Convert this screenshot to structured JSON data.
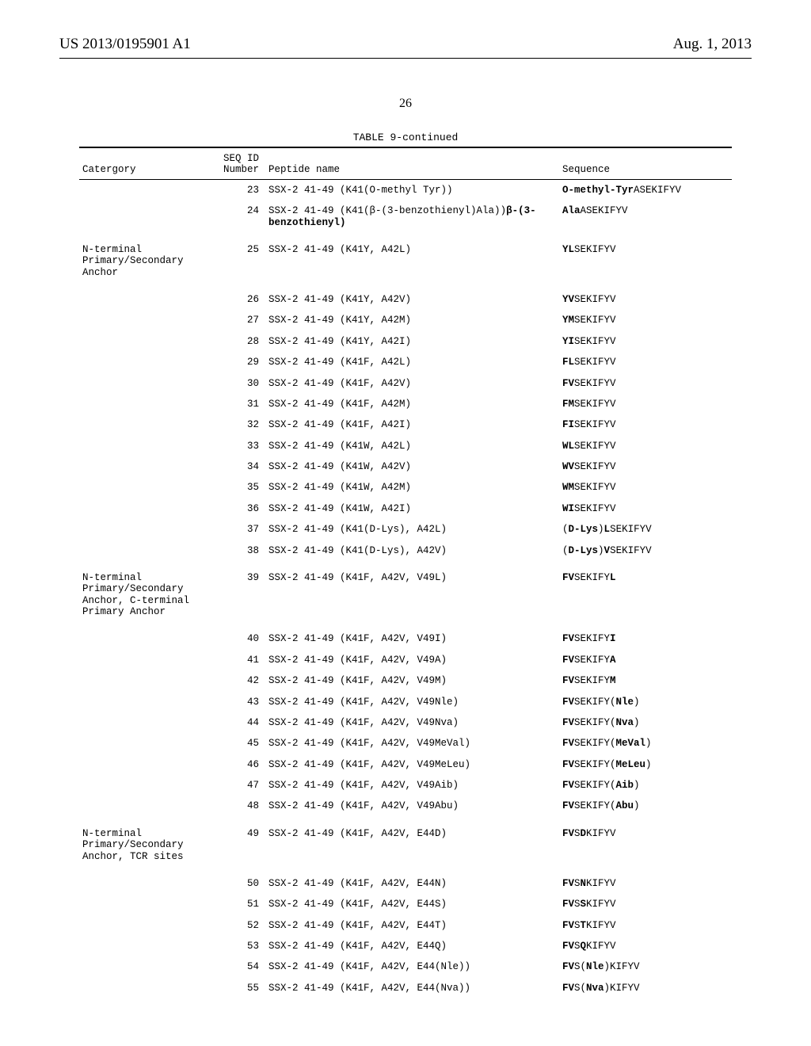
{
  "header": {
    "left": "US 2013/0195901 A1",
    "right": "Aug. 1, 2013"
  },
  "page_number": "26",
  "table": {
    "title": "TABLE 9-continued",
    "columns": {
      "category": "Catergory",
      "seqid_top": "SEQ ID",
      "seqid_bottom": "Number",
      "peptide": "Peptide name",
      "sequence": "Sequence"
    },
    "rows": [
      {
        "gap": false,
        "cat": "",
        "n": "23",
        "name_plain": "SSX-2 41-49 (K41(O-methyl Tyr))",
        "seq_html": "<b>O-methyl-Tyr</b>ASEKIFYV"
      },
      {
        "gap": false,
        "cat": "",
        "n": "24",
        "name_plain": "SSX-2 41-49 (K41(β-(3-benzothienyl)Ala))",
        "name_extra_html": "<b>β-(3-benzothienyl)</b>",
        "seq_html": "<b>Ala</b>ASEKIFYV"
      },
      {
        "gap": true,
        "cat": "N-terminal\nPrimary/Secondary\nAnchor",
        "n": "25",
        "name_plain": "SSX-2 41-49 (K41Y, A42L)",
        "seq_html": "<b>YL</b>SEKIFYV"
      },
      {
        "gap": true,
        "cat": "",
        "n": "26",
        "name_plain": "SSX-2 41-49 (K41Y, A42V)",
        "seq_html": "<b>YV</b>SEKIFYV"
      },
      {
        "gap": false,
        "cat": "",
        "n": "27",
        "name_plain": "SSX-2 41-49 (K41Y, A42M)",
        "seq_html": "<b>YM</b>SEKIFYV"
      },
      {
        "gap": false,
        "cat": "",
        "n": "28",
        "name_plain": "SSX-2 41-49 (K41Y, A42I)",
        "seq_html": "<b>YI</b>SEKIFYV"
      },
      {
        "gap": false,
        "cat": "",
        "n": "29",
        "name_plain": "SSX-2 41-49 (K41F, A42L)",
        "seq_html": "<b>FL</b>SEKIFYV"
      },
      {
        "gap": false,
        "cat": "",
        "n": "30",
        "name_plain": "SSX-2 41-49 (K41F, A42V)",
        "seq_html": "<b>FV</b>SEKIFYV"
      },
      {
        "gap": false,
        "cat": "",
        "n": "31",
        "name_plain": "SSX-2 41-49 (K41F, A42M)",
        "seq_html": "<b>FM</b>SEKIFYV"
      },
      {
        "gap": false,
        "cat": "",
        "n": "32",
        "name_plain": "SSX-2 41-49 (K41F, A42I)",
        "seq_html": "<b>FI</b>SEKIFYV"
      },
      {
        "gap": false,
        "cat": "",
        "n": "33",
        "name_plain": "SSX-2 41-49 (K41W, A42L)",
        "seq_html": "<b>WL</b>SEKIFYV"
      },
      {
        "gap": false,
        "cat": "",
        "n": "34",
        "name_plain": "SSX-2 41-49 (K41W, A42V)",
        "seq_html": "<b>WV</b>SEKIFYV"
      },
      {
        "gap": false,
        "cat": "",
        "n": "35",
        "name_plain": "SSX-2 41-49 (K41W, A42M)",
        "seq_html": "<b>WM</b>SEKIFYV"
      },
      {
        "gap": false,
        "cat": "",
        "n": "36",
        "name_plain": "SSX-2 41-49 (K41W, A42I)",
        "seq_html": "<b>WI</b>SEKIFYV"
      },
      {
        "gap": false,
        "cat": "",
        "n": "37",
        "name_plain": "SSX-2 41-49 (K41(D-Lys), A42L)",
        "seq_html": "(<b>D-Lys</b>)<b>L</b>SEKIFYV"
      },
      {
        "gap": false,
        "cat": "",
        "n": "38",
        "name_plain": "SSX-2 41-49 (K41(D-Lys), A42V)",
        "seq_html": "(<b>D-Lys</b>)<b>V</b>SEKIFYV"
      },
      {
        "gap": true,
        "cat": "N-terminal\nPrimary/Secondary\nAnchor, C-terminal\nPrimary Anchor",
        "n": "39",
        "name_plain": "SSX-2 41-49 (K41F, A42V, V49L)",
        "seq_html": "<b>FV</b>SEKIFY<b>L</b>"
      },
      {
        "gap": true,
        "cat": "",
        "n": "40",
        "name_plain": "SSX-2 41-49 (K41F, A42V, V49I)",
        "seq_html": "<b>FV</b>SEKIFY<b>I</b>"
      },
      {
        "gap": false,
        "cat": "",
        "n": "41",
        "name_plain": "SSX-2 41-49 (K41F, A42V, V49A)",
        "seq_html": "<b>FV</b>SEKIFY<b>A</b>"
      },
      {
        "gap": false,
        "cat": "",
        "n": "42",
        "name_plain": "SSX-2 41-49 (K41F, A42V, V49M)",
        "seq_html": "<b>FV</b>SEKIFY<b>M</b>"
      },
      {
        "gap": false,
        "cat": "",
        "n": "43",
        "name_plain": "SSX-2 41-49 (K41F, A42V, V49Nle)",
        "seq_html": "<b>FV</b>SEKIFY(<b>Nle</b>)"
      },
      {
        "gap": false,
        "cat": "",
        "n": "44",
        "name_plain": "SSX-2 41-49 (K41F, A42V, V49Nva)",
        "seq_html": "<b>FV</b>SEKIFY(<b>Nva</b>)"
      },
      {
        "gap": false,
        "cat": "",
        "n": "45",
        "name_plain": "SSX-2 41-49 (K41F, A42V, V49MeVal)",
        "seq_html": "<b>FV</b>SEKIFY(<b>MeVal</b>)"
      },
      {
        "gap": false,
        "cat": "",
        "n": "46",
        "name_plain": "SSX-2 41-49 (K41F, A42V, V49MeLeu)",
        "seq_html": "<b>FV</b>SEKIFY(<b>MeLeu</b>)"
      },
      {
        "gap": false,
        "cat": "",
        "n": "47",
        "name_plain": "SSX-2 41-49 (K41F, A42V, V49Aib)",
        "seq_html": "<b>FV</b>SEKIFY(<b>Aib</b>)"
      },
      {
        "gap": false,
        "cat": "",
        "n": "48",
        "name_plain": "SSX-2 41-49 (K41F, A42V, V49Abu)",
        "seq_html": "<b>FV</b>SEKIFY(<b>Abu</b>)"
      },
      {
        "gap": true,
        "cat": "N-terminal\nPrimary/Secondary\nAnchor, TCR sites",
        "n": "49",
        "name_plain": "SSX-2 41-49 (K41F, A42V, E44D)",
        "seq_html": "<b>FV</b>S<b>D</b>KIFYV"
      },
      {
        "gap": true,
        "cat": "",
        "n": "50",
        "name_plain": "SSX-2 41-49 (K41F, A42V, E44N)",
        "seq_html": "<b>FV</b>S<b>N</b>KIFYV"
      },
      {
        "gap": false,
        "cat": "",
        "n": "51",
        "name_plain": "SSX-2 41-49 (K41F, A42V, E44S)",
        "seq_html": "<b>FV</b>S<b>S</b>KIFYV"
      },
      {
        "gap": false,
        "cat": "",
        "n": "52",
        "name_plain": "SSX-2 41-49 (K41F, A42V, E44T)",
        "seq_html": "<b>FV</b>S<b>T</b>KIFYV"
      },
      {
        "gap": false,
        "cat": "",
        "n": "53",
        "name_plain": "SSX-2 41-49 (K41F, A42V, E44Q)",
        "seq_html": "<b>FV</b>S<b>Q</b>KIFYV"
      },
      {
        "gap": false,
        "cat": "",
        "n": "54",
        "name_plain": "SSX-2 41-49 (K41F, A42V, E44(Nle))",
        "seq_html": "<b>FV</b>S(<b>Nle</b>)KIFYV"
      },
      {
        "gap": false,
        "cat": "",
        "n": "55",
        "name_plain": "SSX-2 41-49 (K41F, A42V, E44(Nva))",
        "seq_html": "<b>FV</b>S(<b>Nva</b>)KIFYV"
      }
    ]
  }
}
